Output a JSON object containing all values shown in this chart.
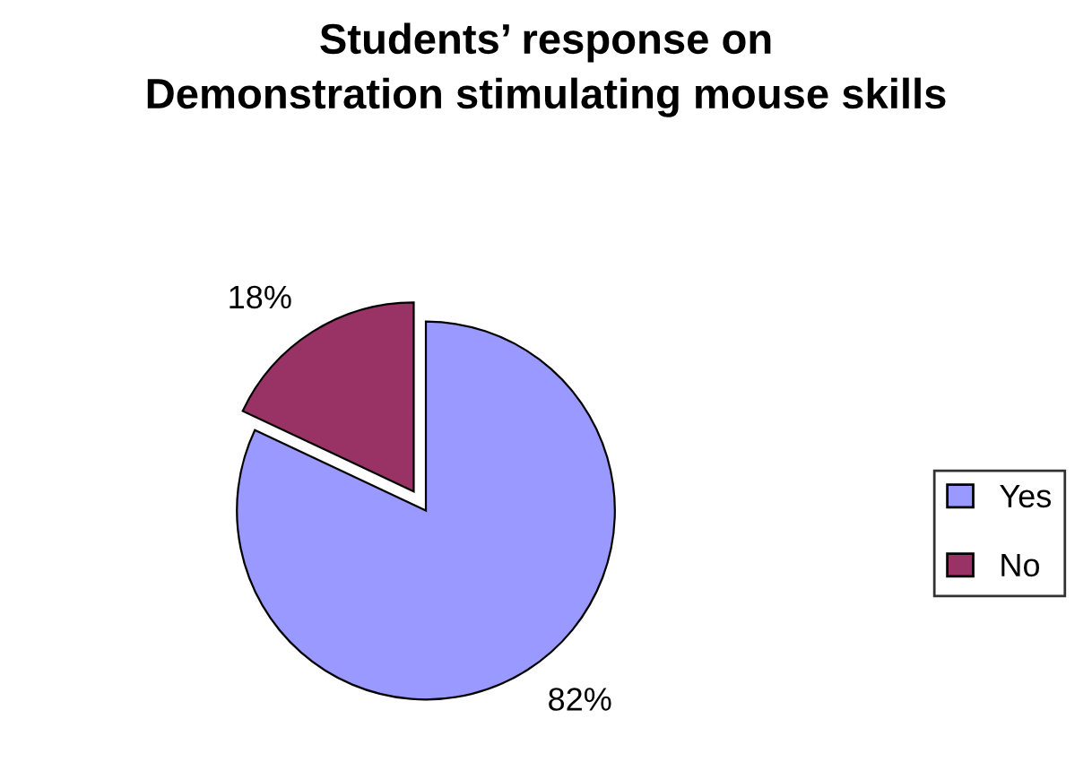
{
  "chart_data": {
    "type": "pie",
    "title": "Students’ response on\nDemonstration stimulating mouse skills",
    "categories": [
      "Yes",
      "No"
    ],
    "values": [
      82,
      18
    ],
    "colors": [
      "#9999ff",
      "#993366"
    ],
    "value_labels": [
      "82%",
      "18%"
    ],
    "legend": "right"
  }
}
